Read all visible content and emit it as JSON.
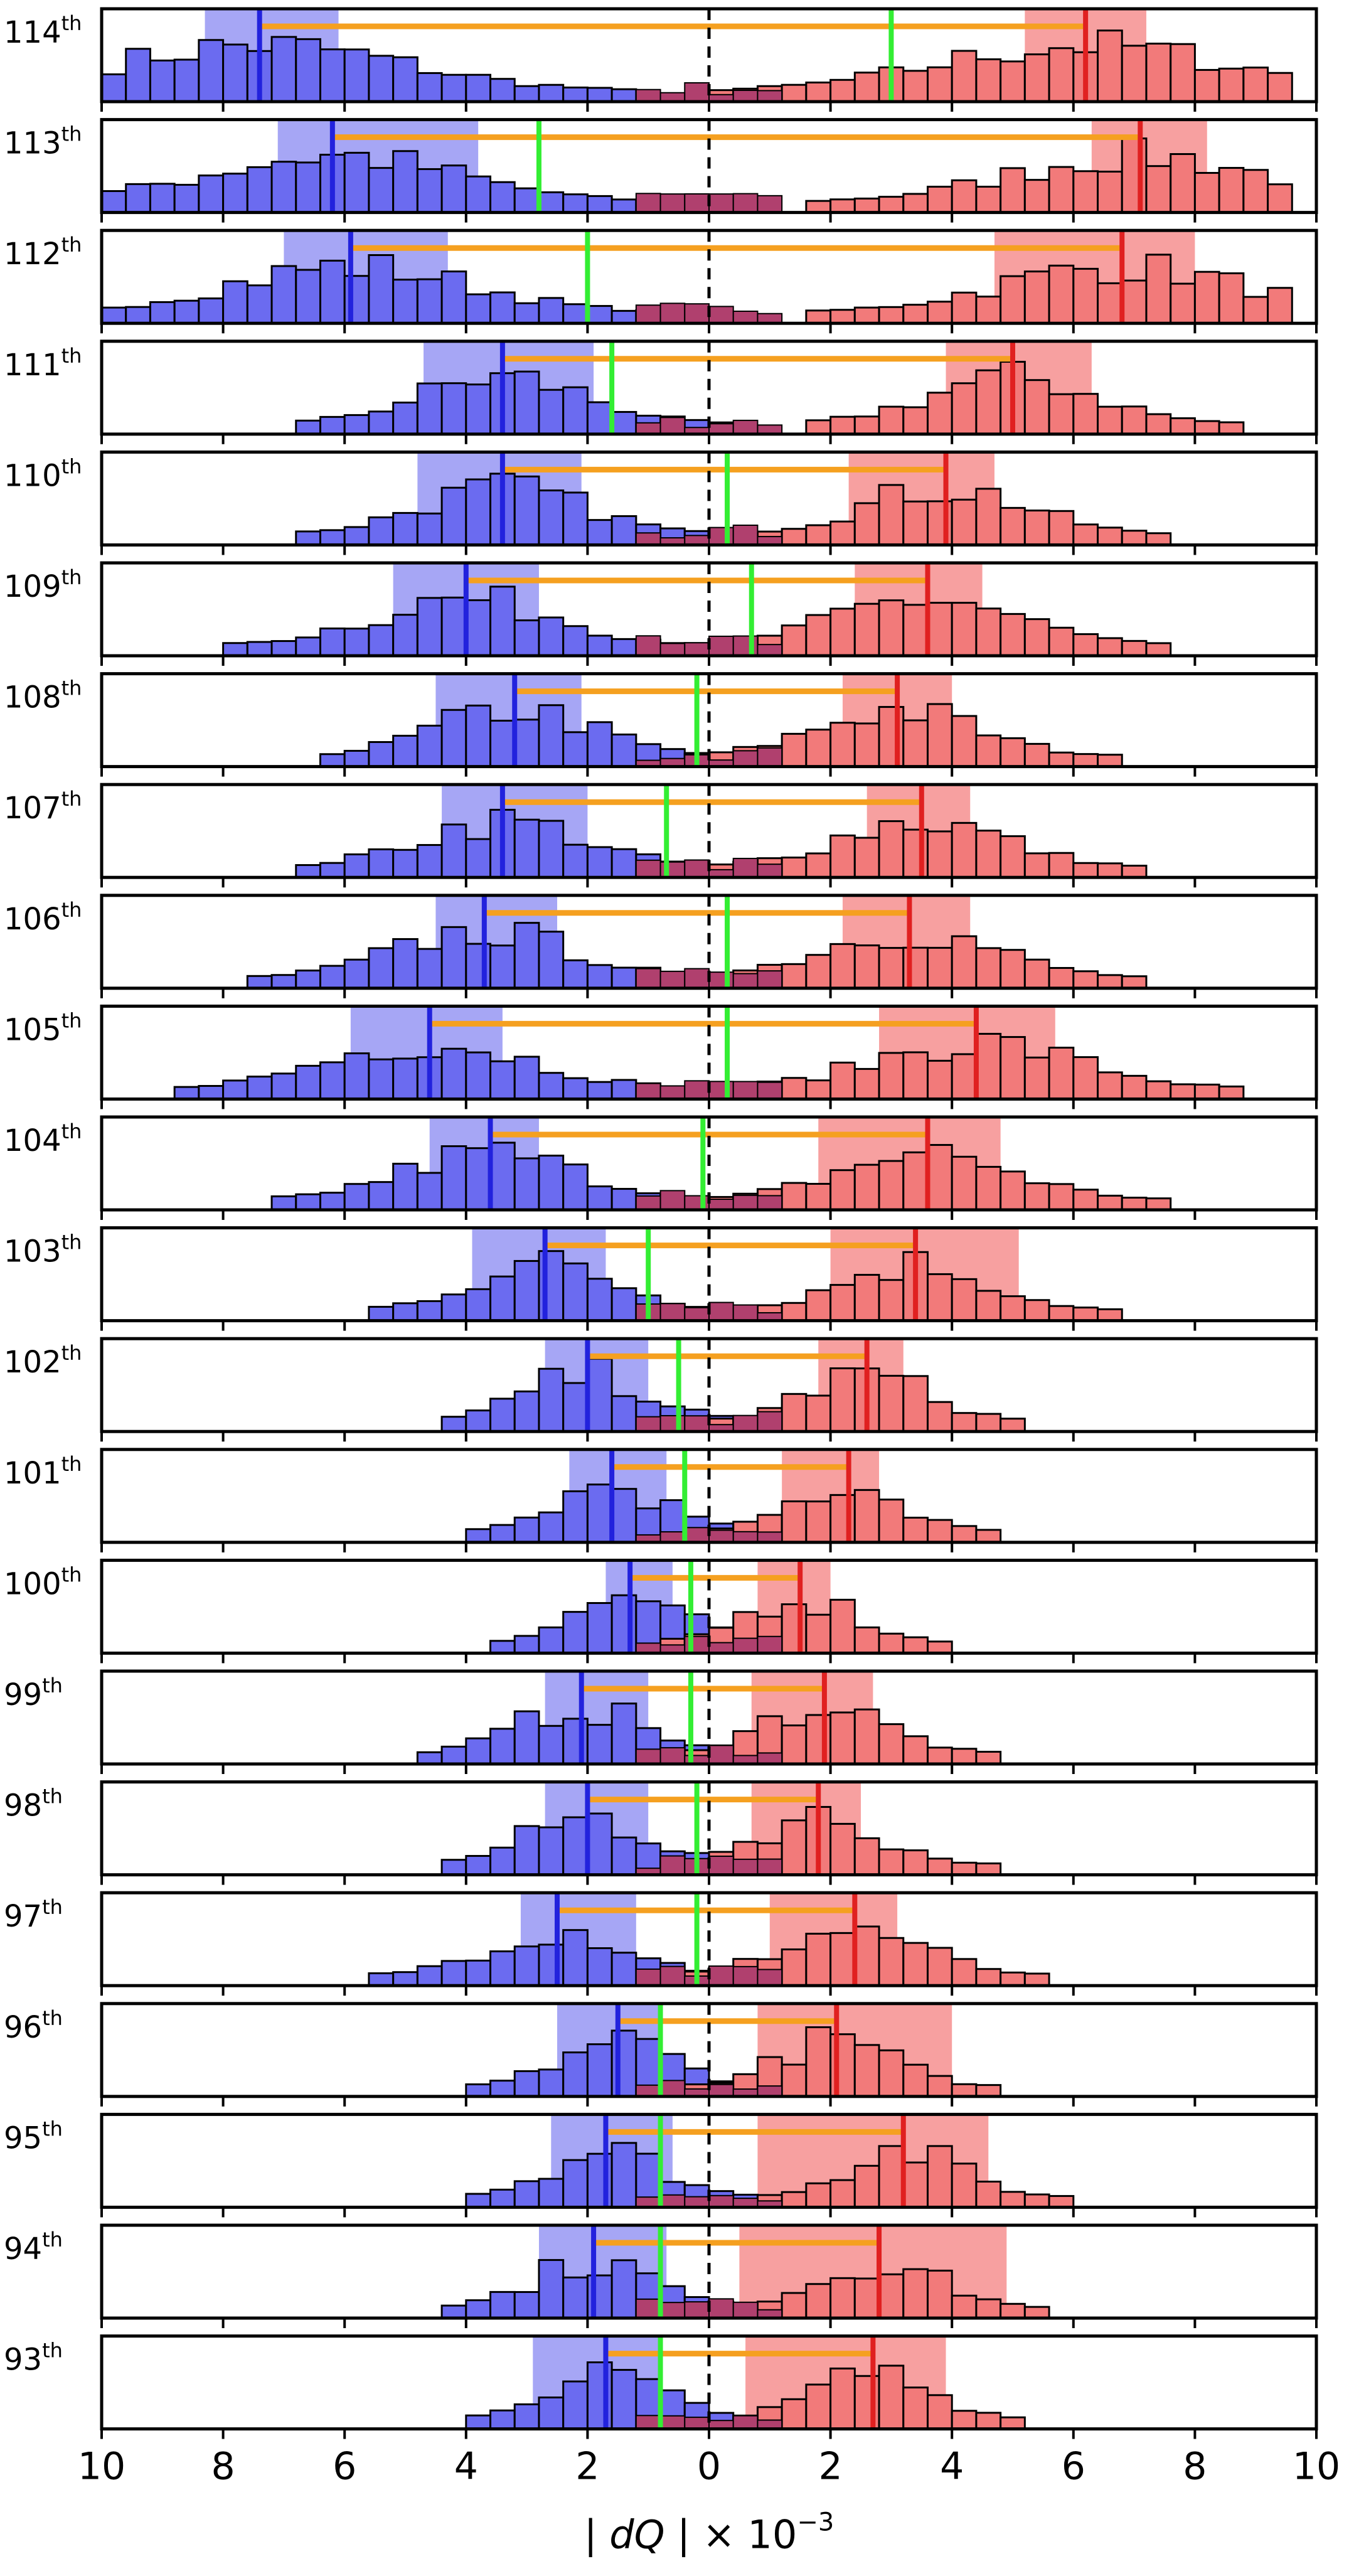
{
  "chart_data": {
    "type": "histogram",
    "xlabel_main": "| dQ |",
    "xlabel_scale": "× 10",
    "xlabel_exp": "−3",
    "xlim": [
      10,
      -10,
      10
    ],
    "xticks": [
      10,
      8,
      6,
      4,
      2,
      0,
      2,
      4,
      6,
      8,
      10
    ],
    "x_signed_ticks": [
      -10,
      -8,
      -6,
      -4,
      -2,
      0,
      2,
      4,
      6,
      8,
      10
    ],
    "reference_line_x": 0,
    "colors": {
      "negative_fill": "#6b6bf0",
      "negative_band": "#a6a6f5",
      "negative_mean": "#2222dd",
      "positive_fill": "#f27a7a",
      "positive_band": "#f7a0a0",
      "positive_mean": "#e02020",
      "overlap_fill": "#b0406e",
      "mean_diff_line": "#f5a020",
      "overall_mean": "#33ee33",
      "zero_line": "#000000"
    },
    "panels": [
      {
        "label": "114",
        "suffix": "th",
        "neg_mean": -7.4,
        "neg_band": [
          -8.3,
          -6.1
        ],
        "pos_mean": 6.2,
        "pos_band": [
          5.2,
          7.2
        ],
        "overall": 3.0
      },
      {
        "label": "113",
        "suffix": "th",
        "neg_mean": -6.2,
        "neg_band": [
          -7.1,
          -3.8
        ],
        "pos_mean": 7.1,
        "pos_band": [
          6.3,
          8.2
        ],
        "overall": -2.8
      },
      {
        "label": "112",
        "suffix": "th",
        "neg_mean": -5.9,
        "neg_band": [
          -7.0,
          -4.3
        ],
        "pos_mean": 6.8,
        "pos_band": [
          4.7,
          8.0
        ],
        "overall": -2.0
      },
      {
        "label": "111",
        "suffix": "th",
        "neg_mean": -3.4,
        "neg_band": [
          -4.7,
          -1.9
        ],
        "pos_mean": 5.0,
        "pos_band": [
          3.9,
          6.3
        ],
        "overall": -1.6
      },
      {
        "label": "110",
        "suffix": "th",
        "neg_mean": -3.4,
        "neg_band": [
          -4.8,
          -2.1
        ],
        "pos_mean": 3.9,
        "pos_band": [
          2.3,
          4.7
        ],
        "overall": 0.3
      },
      {
        "label": "109",
        "suffix": "th",
        "neg_mean": -4.0,
        "neg_band": [
          -5.2,
          -2.8
        ],
        "pos_mean": 3.6,
        "pos_band": [
          2.4,
          4.5
        ],
        "overall": 0.7
      },
      {
        "label": "108",
        "suffix": "th",
        "neg_mean": -3.2,
        "neg_band": [
          -4.5,
          -2.1
        ],
        "pos_mean": 3.1,
        "pos_band": [
          2.2,
          4.0
        ],
        "overall": -0.2
      },
      {
        "label": "107",
        "suffix": "th",
        "neg_mean": -3.4,
        "neg_band": [
          -4.4,
          -2.0
        ],
        "pos_mean": 3.5,
        "pos_band": [
          2.6,
          4.3
        ],
        "overall": -0.7
      },
      {
        "label": "106",
        "suffix": "th",
        "neg_mean": -3.7,
        "neg_band": [
          -4.5,
          -2.5
        ],
        "pos_mean": 3.3,
        "pos_band": [
          2.2,
          4.3
        ],
        "overall": 0.3
      },
      {
        "label": "105",
        "suffix": "th",
        "neg_mean": -4.6,
        "neg_band": [
          -5.9,
          -3.4
        ],
        "pos_mean": 4.4,
        "pos_band": [
          2.8,
          5.7
        ],
        "overall": 0.3
      },
      {
        "label": "104",
        "suffix": "th",
        "neg_mean": -3.6,
        "neg_band": [
          -4.6,
          -2.8
        ],
        "pos_mean": 3.6,
        "pos_band": [
          1.8,
          4.8
        ],
        "overall": -0.1
      },
      {
        "label": "103",
        "suffix": "th",
        "neg_mean": -2.7,
        "neg_band": [
          -3.9,
          -1.7
        ],
        "pos_mean": 3.4,
        "pos_band": [
          2.0,
          5.1
        ],
        "overall": -1.0
      },
      {
        "label": "102",
        "suffix": "th",
        "neg_mean": -2.0,
        "neg_band": [
          -2.7,
          -1.0
        ],
        "pos_mean": 2.6,
        "pos_band": [
          1.8,
          3.2
        ],
        "overall": -0.5
      },
      {
        "label": "101",
        "suffix": "th",
        "neg_mean": -1.6,
        "neg_band": [
          -2.3,
          -0.7
        ],
        "pos_mean": 2.3,
        "pos_band": [
          1.2,
          2.8
        ],
        "overall": -0.4
      },
      {
        "label": "100",
        "suffix": "th",
        "neg_mean": -1.3,
        "neg_band": [
          -1.7,
          -0.6
        ],
        "pos_mean": 1.5,
        "pos_band": [
          0.8,
          2.0
        ],
        "overall": -0.3
      },
      {
        "label": "99",
        "suffix": "th",
        "neg_mean": -2.1,
        "neg_band": [
          -2.7,
          -1.0
        ],
        "pos_mean": 1.9,
        "pos_band": [
          0.7,
          2.7
        ],
        "overall": -0.3
      },
      {
        "label": "98",
        "suffix": "th",
        "neg_mean": -2.0,
        "neg_band": [
          -2.7,
          -1.0
        ],
        "pos_mean": 1.8,
        "pos_band": [
          0.7,
          2.5
        ],
        "overall": -0.2
      },
      {
        "label": "97",
        "suffix": "th",
        "neg_mean": -2.5,
        "neg_band": [
          -3.1,
          -1.2
        ],
        "pos_mean": 2.4,
        "pos_band": [
          1.0,
          3.1
        ],
        "overall": -0.2
      },
      {
        "label": "96",
        "suffix": "th",
        "neg_mean": -1.5,
        "neg_band": [
          -2.5,
          -0.8
        ],
        "pos_mean": 2.1,
        "pos_band": [
          0.8,
          4.0
        ],
        "overall": -0.8
      },
      {
        "label": "95",
        "suffix": "th",
        "neg_mean": -1.7,
        "neg_band": [
          -2.6,
          -0.6
        ],
        "pos_mean": 3.2,
        "pos_band": [
          0.8,
          4.6
        ],
        "overall": -0.8
      },
      {
        "label": "94",
        "suffix": "th",
        "neg_mean": -1.9,
        "neg_band": [
          -2.8,
          -0.7
        ],
        "pos_mean": 2.8,
        "pos_band": [
          0.5,
          4.9
        ],
        "overall": -0.8
      },
      {
        "label": "93",
        "suffix": "th",
        "neg_mean": -1.7,
        "neg_band": [
          -2.9,
          -0.8
        ],
        "pos_mean": 2.7,
        "pos_band": [
          0.6,
          3.9
        ],
        "overall": -0.8
      }
    ]
  }
}
